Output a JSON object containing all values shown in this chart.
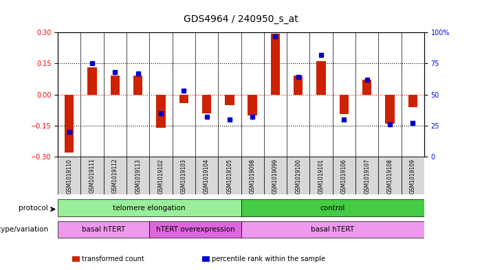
{
  "title": "GDS4964 / 240950_s_at",
  "samples": [
    "GSM1019110",
    "GSM1019111",
    "GSM1019112",
    "GSM1019113",
    "GSM1019102",
    "GSM1019103",
    "GSM1019104",
    "GSM1019105",
    "GSM1019098",
    "GSM1019099",
    "GSM1019100",
    "GSM1019101",
    "GSM1019106",
    "GSM1019107",
    "GSM1019108",
    "GSM1019109"
  ],
  "transformed_count": [
    -0.28,
    0.13,
    0.09,
    0.09,
    -0.16,
    -0.04,
    -0.09,
    -0.05,
    -0.1,
    0.295,
    0.09,
    0.16,
    -0.095,
    0.07,
    -0.14,
    -0.06
  ],
  "percentile_rank": [
    20,
    75,
    68,
    67,
    35,
    53,
    32,
    30,
    32,
    97,
    64,
    82,
    30,
    62,
    26,
    27
  ],
  "ylim_left": [
    -0.3,
    0.3
  ],
  "ylim_right": [
    0,
    100
  ],
  "yticks_left": [
    -0.3,
    -0.15,
    0,
    0.15,
    0.3
  ],
  "yticks_right": [
    0,
    25,
    50,
    75,
    100
  ],
  "hline_dotted": [
    0.15,
    0,
    -0.15
  ],
  "bar_color": "#cc2200",
  "dot_color": "#0000cc",
  "protocol_groups": [
    {
      "label": "telomere elongation",
      "start": 0,
      "end": 8,
      "color": "#99ee99"
    },
    {
      "label": "control",
      "start": 8,
      "end": 16,
      "color": "#44cc44"
    }
  ],
  "genotype_groups": [
    {
      "label": "basal hTERT",
      "start": 0,
      "end": 4,
      "color": "#ee99ee"
    },
    {
      "label": "hTERT overexpression",
      "start": 4,
      "end": 8,
      "color": "#dd66dd"
    },
    {
      "label": "basal hTERT",
      "start": 8,
      "end": 16,
      "color": "#ee99ee"
    }
  ],
  "legend_items": [
    {
      "color": "#cc2200",
      "label": "transformed count"
    },
    {
      "color": "#0000cc",
      "label": "percentile rank within the sample"
    }
  ],
  "bg_color": "#f0f0f0",
  "plot_bg": "#ffffff"
}
